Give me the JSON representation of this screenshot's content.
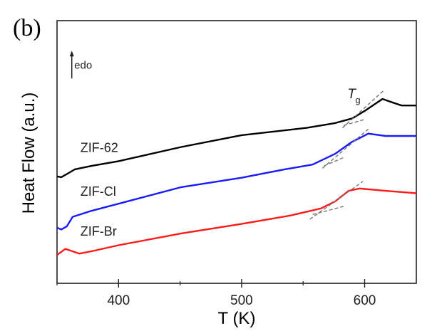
{
  "panel_label": "(b)",
  "chart_data": {
    "type": "line",
    "title": "",
    "xlabel": "T (K)",
    "ylabel": "Heat Flow (a.u.)",
    "xlim": [
      350,
      642
    ],
    "ylim": [
      0,
      100
    ],
    "xticks": [
      400,
      500,
      600
    ],
    "xticks_minor": [
      350,
      450,
      550
    ],
    "grid": false,
    "legend": "none (inline labels)",
    "endo_label": "edo",
    "endo_arrow": {
      "x": 362,
      "y_from": 78,
      "y_to": 88,
      "label_x": 364,
      "label_y": 83
    },
    "tg_label": {
      "main": "T",
      "sub": "g",
      "x": 586,
      "y": 70.5
    },
    "series": [
      {
        "name": "ZIF-62",
        "color": "#000000",
        "label_pos": [
          369,
          50
        ],
        "x": [
          350,
          353.4,
          358,
          364.5,
          378,
          400,
          451,
          500,
          553,
          576,
          590,
          601,
          614.5,
          621,
          630,
          642
        ],
        "y": [
          40.7,
          40.4,
          41.6,
          43.4,
          44.7,
          46.5,
          51.9,
          56.4,
          59.2,
          61.0,
          62.8,
          65.9,
          70.2,
          69.1,
          67.7,
          67.7
        ],
        "tangents": [
          [
            [
              582,
              59.2
            ],
            [
              615,
              73.2
            ]
          ],
          [
            [
              583,
              60.1
            ],
            [
              600,
              62.4
            ]
          ]
        ]
      },
      {
        "name": "ZIF-Cl",
        "color": "#1a1aff",
        "label_pos": [
          369,
          33.4
        ],
        "x": [
          350,
          353.4,
          358,
          362.7,
          378,
          400,
          451,
          500,
          535,
          557.7,
          576,
          589.5,
          603,
          617,
          630,
          642
        ],
        "y": [
          21.2,
          20.5,
          21.7,
          25.3,
          27.6,
          30.3,
          36.6,
          40.2,
          43.4,
          45.2,
          49.3,
          53.8,
          57.0,
          56.1,
          56.1,
          56.1
        ],
        "tangents": [
          [
            [
              565.7,
              43.8
            ],
            [
              603,
              58.7
            ]
          ],
          [
            [
              567,
              44.7
            ],
            [
              583,
              47.9
            ]
          ]
        ]
      },
      {
        "name": "ZIF-Br",
        "color": "#ff1a1a",
        "label_pos": [
          369,
          18.1
        ],
        "x": [
          350,
          356.8,
          360,
          368,
          378,
          400,
          451,
          500,
          539.5,
          564.5,
          576,
          587,
          596,
          617,
          642
        ],
        "y": [
          10.8,
          13.1,
          12.6,
          11.3,
          12.2,
          14.5,
          19.0,
          22.6,
          25.8,
          28.5,
          31.2,
          35.2,
          36.1,
          35.2,
          34.3
        ],
        "tangents": [
          [
            [
              555.5,
              24.4
            ],
            [
              598.6,
              38.8
            ]
          ],
          [
            [
              557.7,
              26.2
            ],
            [
              583.9,
              29.4
            ]
          ]
        ]
      }
    ]
  }
}
